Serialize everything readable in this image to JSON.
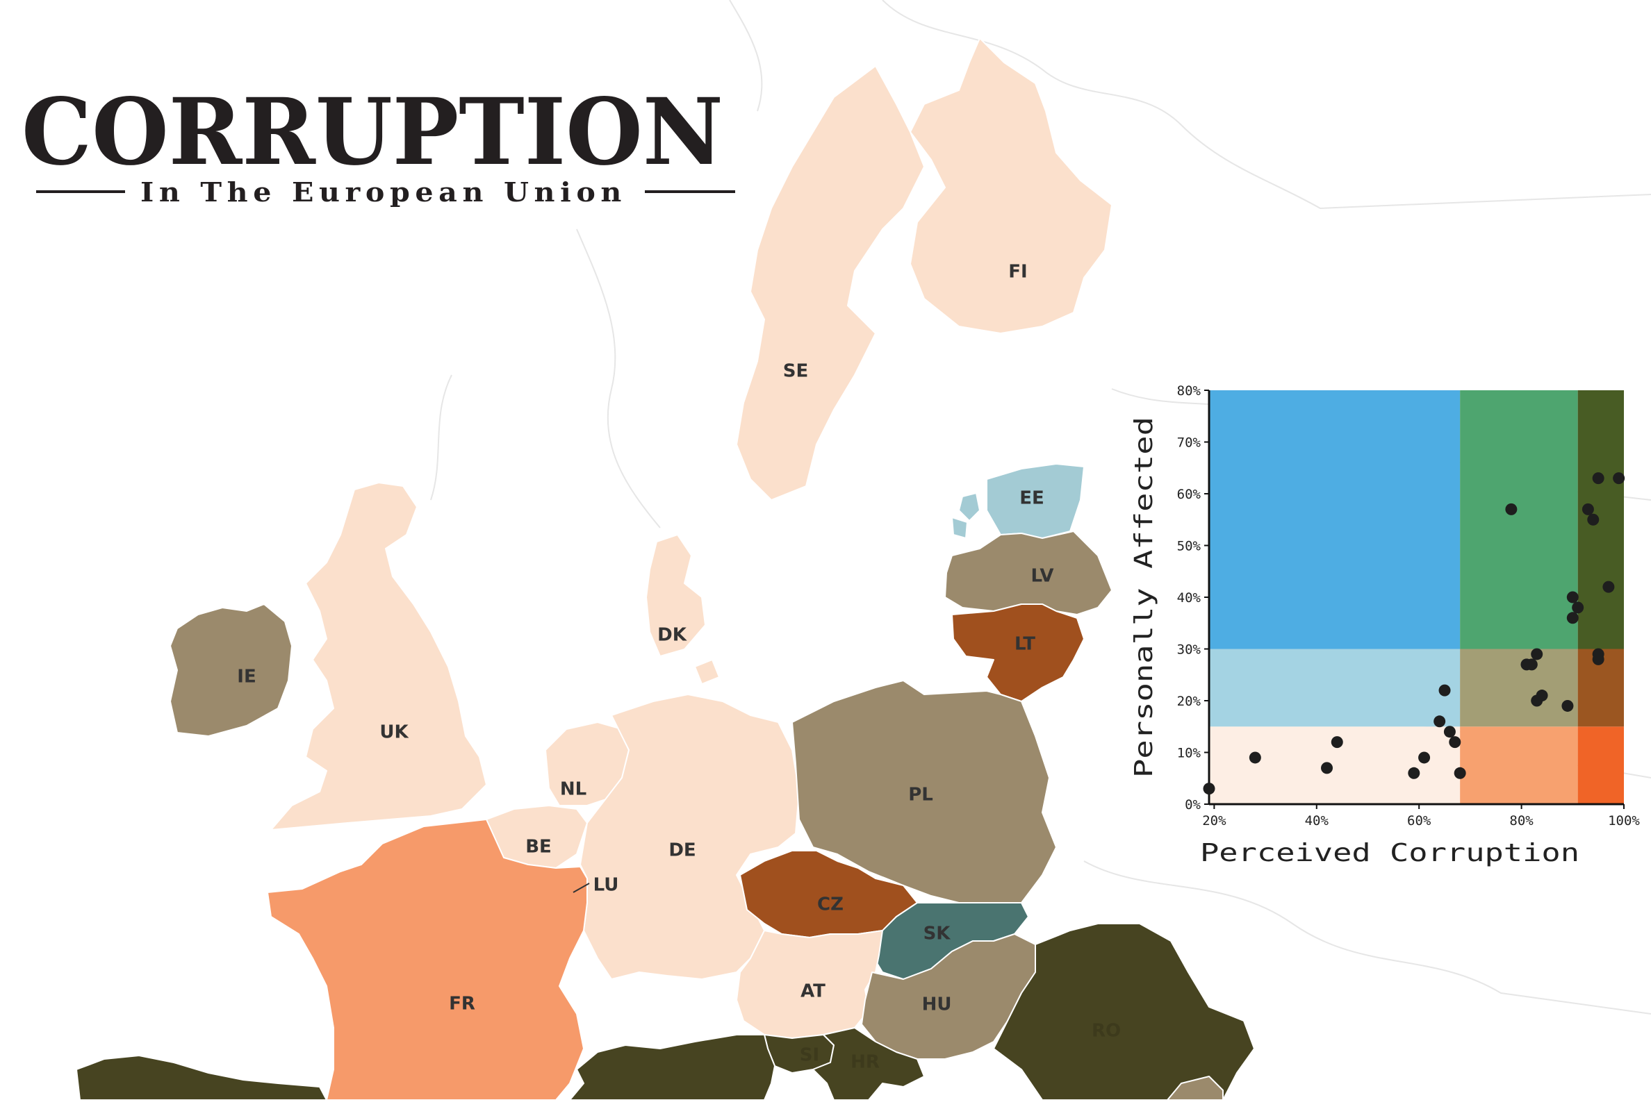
{
  "title": "CORRUPTION",
  "subtitle": "In The European Union",
  "countries": [
    {
      "code": "FI",
      "label": "FI",
      "color": "#fbe0cc"
    },
    {
      "code": "SE",
      "label": "SE",
      "color": "#fbe0cc"
    },
    {
      "code": "EE",
      "label": "EE",
      "color": "#a3cbd4"
    },
    {
      "code": "LV",
      "label": "LV",
      "color": "#9b8a6c"
    },
    {
      "code": "LT",
      "label": "LT",
      "color": "#a0501e"
    },
    {
      "code": "DK",
      "label": "DK",
      "color": "#fbe0cc"
    },
    {
      "code": "IE",
      "label": "IE",
      "color": "#9b8a6c"
    },
    {
      "code": "UK",
      "label": "UK",
      "color": "#fbe0cc"
    },
    {
      "code": "NL",
      "label": "NL",
      "color": "#fbe0cc"
    },
    {
      "code": "BE",
      "label": "BE",
      "color": "#fbe0cc"
    },
    {
      "code": "LU",
      "label": "LU",
      "color": "#fbe0cc"
    },
    {
      "code": "DE",
      "label": "DE",
      "color": "#fbe0cc"
    },
    {
      "code": "PL",
      "label": "PL",
      "color": "#9b8a6c"
    },
    {
      "code": "CZ",
      "label": "CZ",
      "color": "#a0501e"
    },
    {
      "code": "SK",
      "label": "SK",
      "color": "#4a7470"
    },
    {
      "code": "FR",
      "label": "FR",
      "color": "#f69a6a"
    },
    {
      "code": "AT",
      "label": "AT",
      "color": "#fbe0cc"
    },
    {
      "code": "HU",
      "label": "HU",
      "color": "#9b8a6c"
    },
    {
      "code": "RO",
      "label": "RO",
      "color": "#474421"
    },
    {
      "code": "SI",
      "label": "SI",
      "color": "#474421"
    },
    {
      "code": "HR",
      "label": "HR",
      "color": "#474421"
    },
    {
      "code": "IT",
      "label": "",
      "color": "#474421"
    },
    {
      "code": "ES",
      "label": "",
      "color": "#474421"
    },
    {
      "code": "BG",
      "label": "",
      "color": "#9b8a6c"
    }
  ],
  "chart_data": {
    "type": "scatter",
    "xlabel": "Perceived Corruption",
    "ylabel": "Personally Affected",
    "xlim": [
      19,
      100
    ],
    "ylim": [
      0,
      80
    ],
    "xticks": [
      {
        "value": 20,
        "label": "20%"
      },
      {
        "value": 40,
        "label": "40%"
      },
      {
        "value": 60,
        "label": "60%"
      },
      {
        "value": 80,
        "label": "80%"
      },
      {
        "value": 100,
        "label": "100%"
      }
    ],
    "yticks": [
      {
        "value": 0,
        "label": "0%"
      },
      {
        "value": 10,
        "label": "10%"
      },
      {
        "value": 20,
        "label": "20%"
      },
      {
        "value": 30,
        "label": "30%"
      },
      {
        "value": 40,
        "label": "40%"
      },
      {
        "value": 50,
        "label": "50%"
      },
      {
        "value": 60,
        "label": "60%"
      },
      {
        "value": 70,
        "label": "70%"
      },
      {
        "value": 80,
        "label": "80%"
      }
    ],
    "x_breaks": [
      19,
      68,
      91,
      100
    ],
    "y_breaks": [
      0,
      15,
      30,
      80
    ],
    "zone_colors": [
      [
        "#fdeee4",
        "#f7a16f",
        "#f06427"
      ],
      [
        "#a4d3e3",
        "#a39e75",
        "#9b5621"
      ],
      [
        "#4eade3",
        "#4ea56f",
        "#485c24"
      ]
    ],
    "points": [
      {
        "x": 19,
        "y": 3
      },
      {
        "x": 28,
        "y": 9
      },
      {
        "x": 42,
        "y": 7
      },
      {
        "x": 44,
        "y": 12
      },
      {
        "x": 59,
        "y": 6
      },
      {
        "x": 61,
        "y": 9
      },
      {
        "x": 64,
        "y": 16
      },
      {
        "x": 65,
        "y": 22
      },
      {
        "x": 66,
        "y": 14
      },
      {
        "x": 67,
        "y": 12
      },
      {
        "x": 68,
        "y": 6
      },
      {
        "x": 78,
        "y": 57
      },
      {
        "x": 81,
        "y": 27
      },
      {
        "x": 82,
        "y": 27
      },
      {
        "x": 83,
        "y": 29
      },
      {
        "x": 83,
        "y": 20
      },
      {
        "x": 84,
        "y": 21
      },
      {
        "x": 89,
        "y": 19
      },
      {
        "x": 90,
        "y": 40
      },
      {
        "x": 90,
        "y": 36
      },
      {
        "x": 91,
        "y": 38
      },
      {
        "x": 93,
        "y": 57
      },
      {
        "x": 94,
        "y": 55
      },
      {
        "x": 95,
        "y": 63
      },
      {
        "x": 95,
        "y": 29
      },
      {
        "x": 95,
        "y": 28
      },
      {
        "x": 97,
        "y": 42
      },
      {
        "x": 99,
        "y": 63
      }
    ]
  }
}
